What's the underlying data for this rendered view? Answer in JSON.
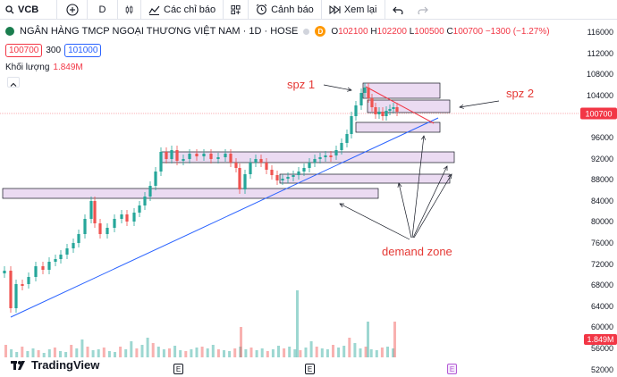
{
  "toolbar": {
    "symbol": "VCB",
    "interval": "D",
    "indicators_label": "Các chỉ báo",
    "alert_label": "Cảnh báo",
    "replay_label": "Xem lại"
  },
  "legend": {
    "title": "NGÂN HÀNG TMCP NGOẠI THƯƠNG VIỆT NAM · 1D · HOSE",
    "badge": "D",
    "o_label": "O",
    "o_value": "102100",
    "h_label": "H",
    "h_value": "102200",
    "l_label": "L",
    "l_value": "100500",
    "c_label": "C",
    "c_value": "100700",
    "change": "−1300 (−1.27%)",
    "sell_price": "100700",
    "spread": "300",
    "buy_price": "101000",
    "volume_label": "Khối lượng",
    "volume_value": "1.849M"
  },
  "axis": {
    "ticks": [
      "116000",
      "112000",
      "108000",
      "104000",
      "100000",
      "96000",
      "92000",
      "88000",
      "84000",
      "80000",
      "76000",
      "72000",
      "68000",
      "64000",
      "60000",
      "56000",
      "52000"
    ],
    "last_price": "100700",
    "volume_tag": "1.849M"
  },
  "annotations": {
    "spz1": "spz 1",
    "spz2": "spz 2",
    "demand": "demand zone"
  },
  "branding": {
    "name": "TradingView"
  },
  "event_badge": "E",
  "colors": {
    "up": "#26a69a",
    "down": "#ef5350",
    "zone": "#e8d5f0",
    "trend": "#2962ff",
    "annot": "#e53935",
    "last": "#f23645"
  }
}
